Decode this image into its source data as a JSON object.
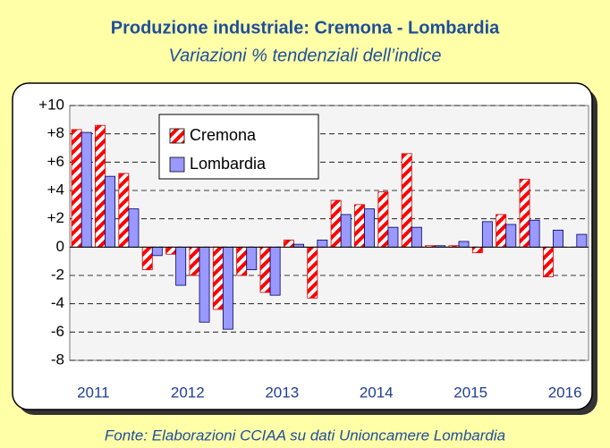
{
  "chart_data": {
    "type": "bar",
    "title": "Produzione industriale: Cremona - Lombardia",
    "subtitle": "Variazioni % tendenziali dell’indice",
    "source": "Fonte: Elaborazioni CCIAA su dati Unioncamere Lombardia",
    "categories": [
      "2011",
      null,
      null,
      null,
      "2012",
      null,
      null,
      null,
      "2013",
      null,
      null,
      null,
      "2014",
      null,
      null,
      null,
      "2015",
      null,
      null,
      null,
      "2016",
      null
    ],
    "series": [
      {
        "name": "Cremona",
        "color": "#ff0000",
        "values": [
          8.3,
          8.6,
          5.2,
          -1.6,
          -0.5,
          -2.0,
          -4.4,
          -2.0,
          -3.2,
          0.5,
          -3.6,
          3.3,
          3.0,
          3.9,
          6.6,
          0.1,
          0.1,
          -0.4,
          2.3,
          4.8,
          -2.1,
          null
        ]
      },
      {
        "name": "Lombardia",
        "color": "#9999ff",
        "values": [
          8.1,
          5.0,
          2.7,
          -0.6,
          -2.7,
          -5.3,
          -5.8,
          -1.6,
          -3.4,
          0.2,
          0.5,
          2.3,
          2.7,
          1.4,
          1.4,
          0.1,
          0.4,
          1.8,
          1.6,
          1.9,
          1.2,
          0.9
        ]
      }
    ],
    "ylim": [
      -8,
      10
    ],
    "yticks": [
      {
        "value": 10,
        "label": "+10"
      },
      {
        "value": 8,
        "label": "+8"
      },
      {
        "value": 6,
        "label": "+6"
      },
      {
        "value": 4,
        "label": "+4"
      },
      {
        "value": 2,
        "label": "+2"
      },
      0,
      -2,
      -4,
      -6,
      -8
    ],
    "grid": true,
    "legend": "top-left"
  }
}
